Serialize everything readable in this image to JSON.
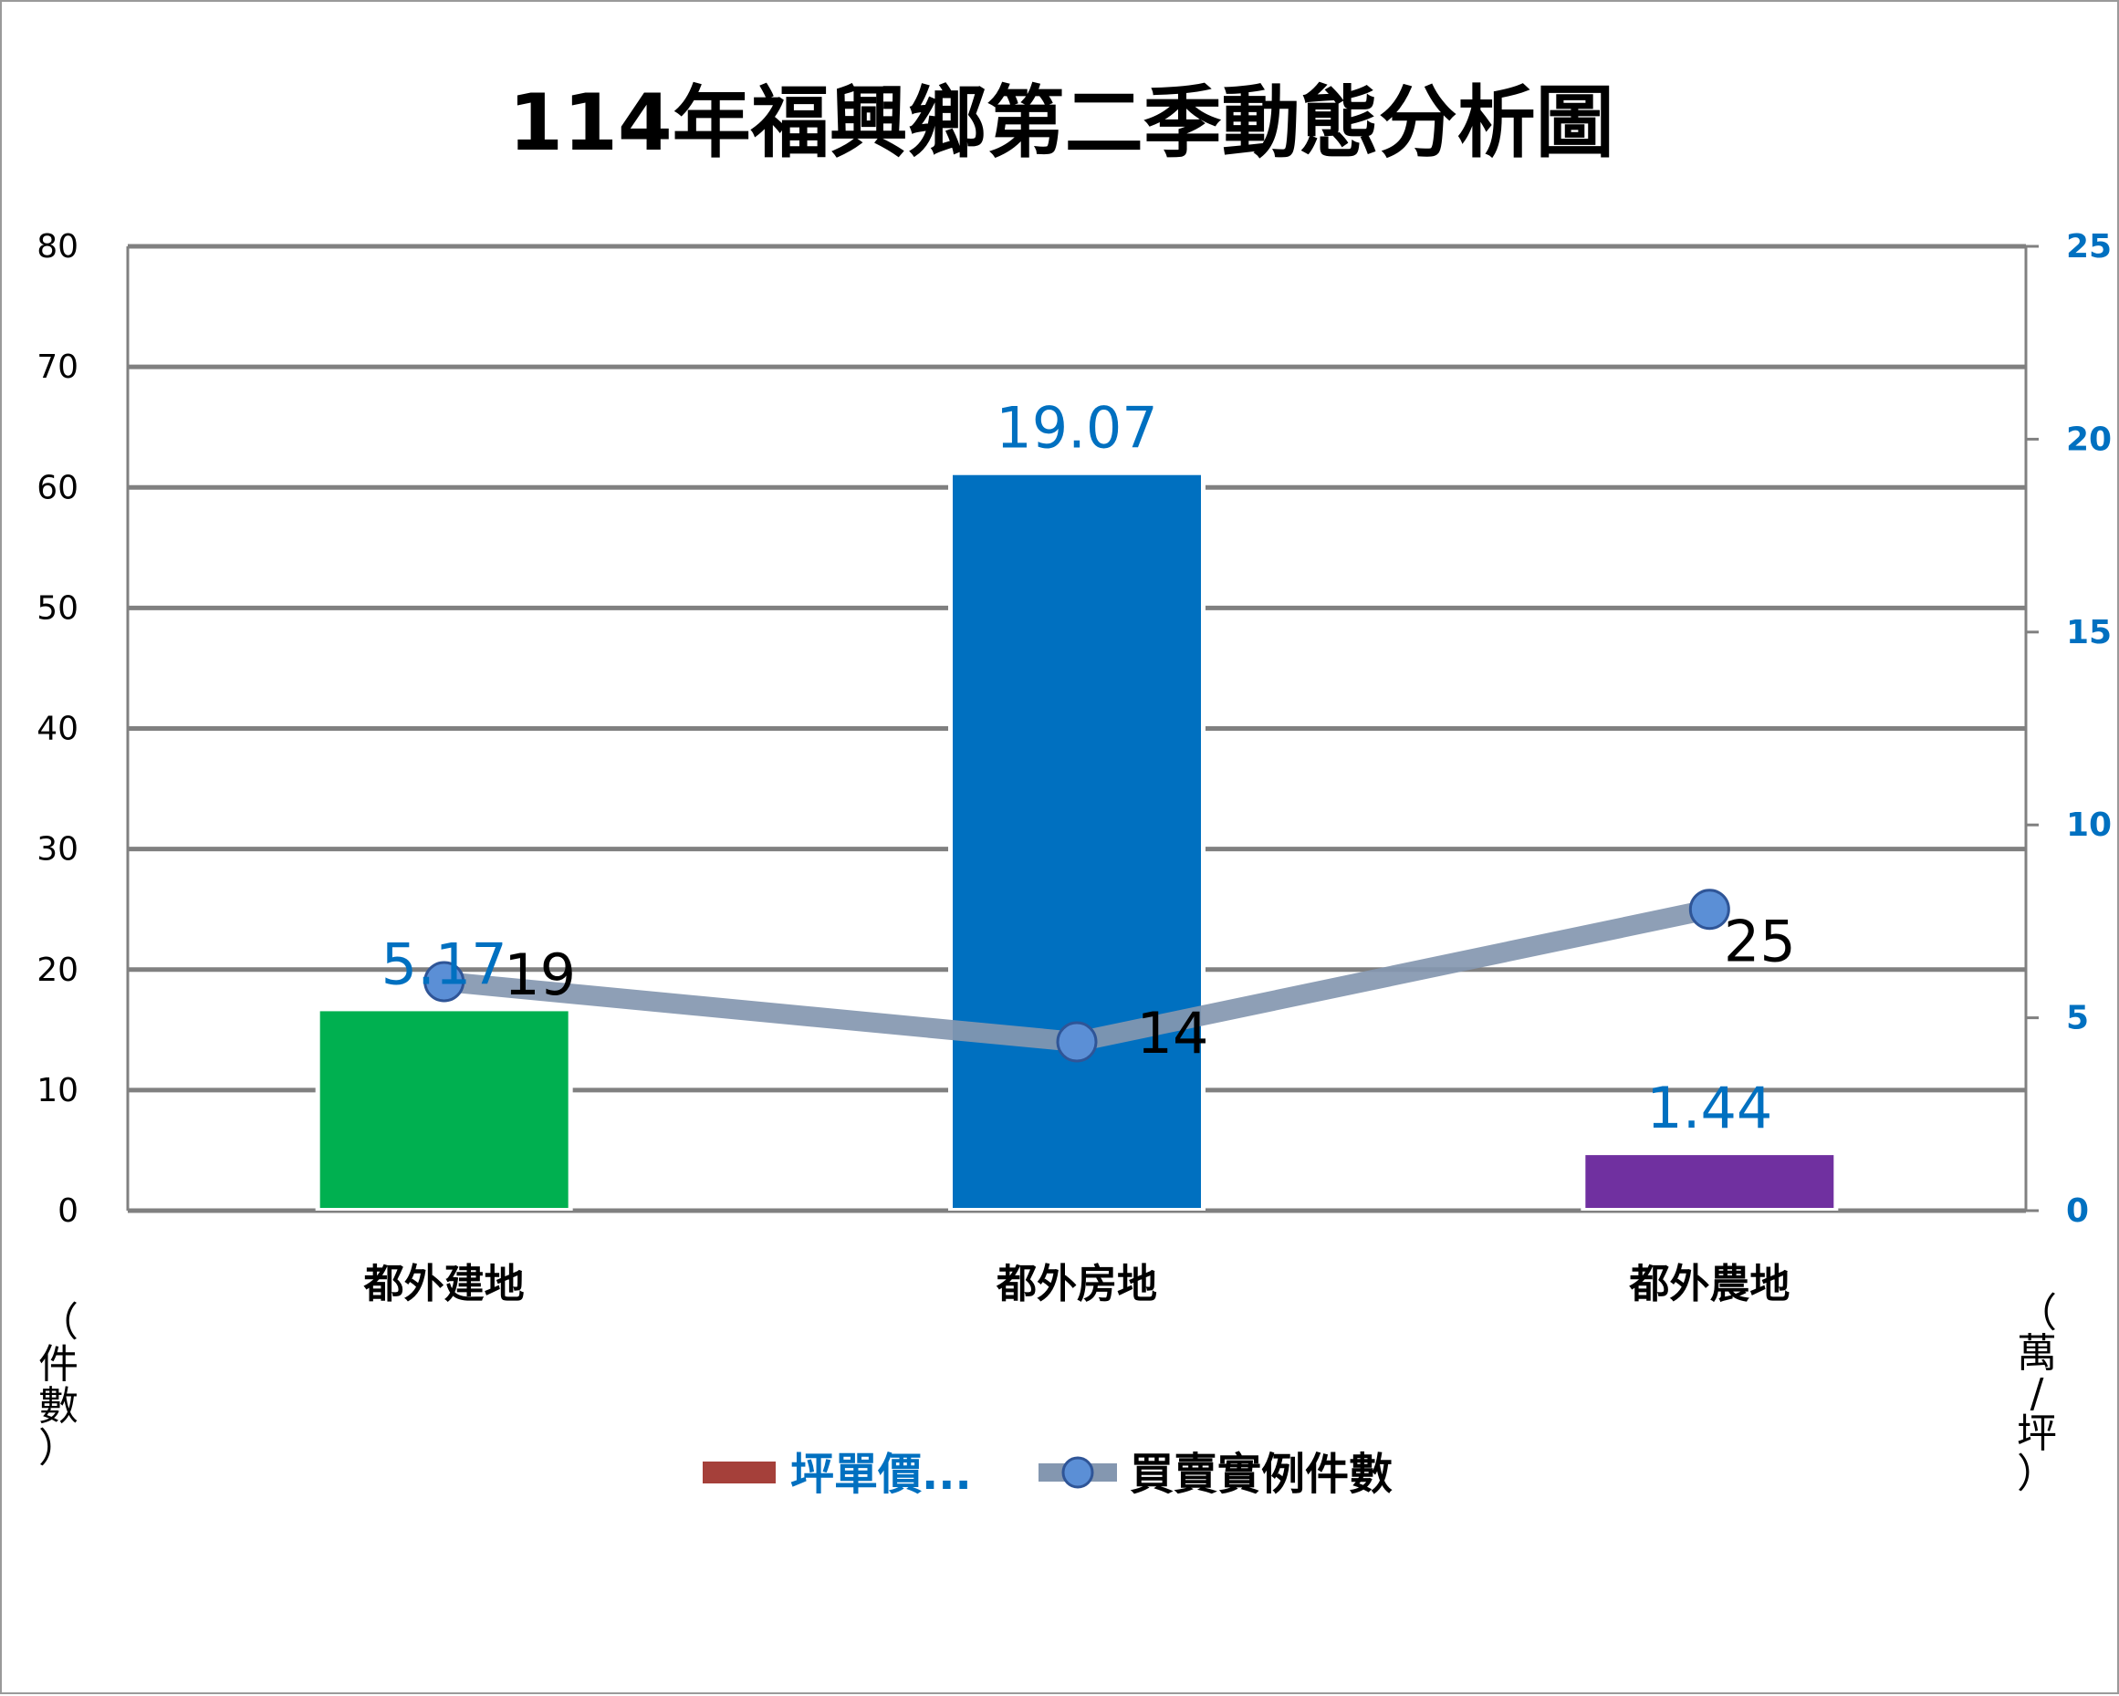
{
  "chart_data": {
    "type": "bar",
    "title": "114年福興鄉第二季動態分析圖",
    "categories": [
      "都外建地",
      "都外房地",
      "都外農地"
    ],
    "bar_series": {
      "name": "坪單價...",
      "values": [
        5.17,
        19.07,
        1.44
      ],
      "value_labels": [
        "5.17",
        "19.07",
        "1.44"
      ],
      "colors": [
        "#00B050",
        "#0070C0",
        "#7030A0"
      ],
      "axis": "right"
    },
    "line_series": {
      "name": "買賣實例件數",
      "values": [
        19,
        14,
        25
      ],
      "value_labels": [
        "19",
        "14",
        "25"
      ],
      "color": "#8497B0",
      "marker_color": "#5B8FD6",
      "axis": "left"
    },
    "left_axis": {
      "ylim": [
        0,
        80
      ],
      "ticks": [
        "0",
        "10",
        "20",
        "30",
        "40",
        "50",
        "60",
        "70",
        "80"
      ],
      "label_chars": [
        "（",
        "件",
        "數",
        "）"
      ]
    },
    "right_axis": {
      "ylim": [
        0,
        25
      ],
      "ticks": [
        "0",
        "5",
        "10",
        "15",
        "20",
        "25"
      ],
      "label_chars": [
        "（",
        "萬",
        "/",
        "坪",
        "）"
      ],
      "color": "#0070C0"
    },
    "grid": true,
    "legend_position": "bottom",
    "legend": [
      {
        "label": "坪單價...",
        "color": "#A5403A",
        "text_color": "#0070C0",
        "kind": "bar"
      },
      {
        "label": "買賣實例件數",
        "color": "#8497B0",
        "text_color": "#000000",
        "kind": "line"
      }
    ]
  }
}
